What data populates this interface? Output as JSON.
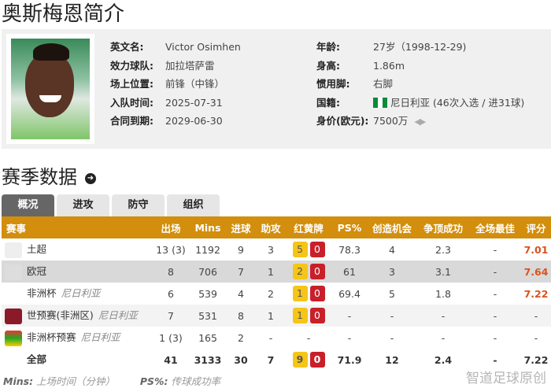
{
  "page_title": "奥斯梅恩简介",
  "profile": {
    "left": [
      {
        "label": "英文名:",
        "value": "Victor Osimhen"
      },
      {
        "label": "效力球队:",
        "value": "加拉塔萨雷"
      },
      {
        "label": "场上位置:",
        "value": "前锋（中锋）"
      },
      {
        "label": "入队时间:",
        "value": "2025-07-31"
      },
      {
        "label": "合同到期:",
        "value": "2029-06-30"
      }
    ],
    "right": [
      {
        "label": "年龄:",
        "value": "27岁（1998-12-29)"
      },
      {
        "label": "身高:",
        "value": "1.86m"
      },
      {
        "label": "惯用脚:",
        "value": "右脚"
      },
      {
        "label": "国籍:",
        "value": "尼日利亚 (46次入选 / 进31球)"
      },
      {
        "label": "身价(欧元):",
        "value": "7500万"
      }
    ]
  },
  "section_title": "赛季数据",
  "tabs": [
    "概况",
    "进攻",
    "防守",
    "组织"
  ],
  "active_tab": "概况",
  "table": {
    "headers": [
      "赛事",
      "出场",
      "Mins",
      "进球",
      "助攻",
      "红黄牌",
      "PS%",
      "创造机会",
      "争顶成功",
      "全场最佳",
      "评分"
    ],
    "rows": [
      {
        "comp": "土超",
        "team": "",
        "logo": "super-lig-logo",
        "apps": "13 (3)",
        "mins": "1192",
        "goals": "9",
        "assists": "3",
        "yellow": "5",
        "red": "0",
        "ps": "78.3",
        "chances": "4",
        "aerials": "2.3",
        "motm": "-",
        "rating": "7.01"
      },
      {
        "comp": "欧冠",
        "team": "",
        "logo": "champions-league-logo",
        "apps": "8",
        "mins": "706",
        "goals": "7",
        "assists": "1",
        "yellow": "2",
        "red": "0",
        "ps": "61",
        "chances": "3",
        "aerials": "3.1",
        "motm": "-",
        "rating": "7.64"
      },
      {
        "comp": "非洲杯",
        "team": "尼日利亚",
        "logo": "",
        "apps": "6",
        "mins": "539",
        "goals": "4",
        "assists": "2",
        "yellow": "1",
        "red": "0",
        "ps": "69.4",
        "chances": "5",
        "aerials": "1.8",
        "motm": "-",
        "rating": "7.22"
      },
      {
        "comp": "世预赛(非洲区)",
        "team": "尼日利亚",
        "logo": "world-cup-logo",
        "apps": "7",
        "mins": "531",
        "goals": "8",
        "assists": "1",
        "yellow": "1",
        "red": "0",
        "ps": "-",
        "chances": "-",
        "aerials": "-",
        "motm": "-",
        "rating": "-"
      },
      {
        "comp": "非洲杯预赛",
        "team": "尼日利亚",
        "logo": "afcon-logo",
        "apps": "1 (3)",
        "mins": "165",
        "goals": "2",
        "assists": "-",
        "yellow": "",
        "red": "",
        "cards": "-",
        "ps": "-",
        "chances": "-",
        "aerials": "-",
        "motm": "-",
        "rating": "-"
      }
    ],
    "total": {
      "comp": "全部",
      "apps": "41",
      "mins": "3133",
      "goals": "30",
      "assists": "7",
      "yellow": "9",
      "red": "0",
      "ps": "71.9",
      "chances": "12",
      "aerials": "2.4",
      "motm": "-",
      "rating": "7.22"
    }
  },
  "footnote": {
    "mins_key": "Mins:",
    "mins_desc": "上场时间（分钟）",
    "ps_key": "PS%:",
    "ps_desc": "传球成功率"
  },
  "watermark": "智道足球原创",
  "colors": {
    "header": "#d28e0c",
    "rating": "#d9531e",
    "yellow": "#f5c518",
    "red": "#c8202a"
  }
}
